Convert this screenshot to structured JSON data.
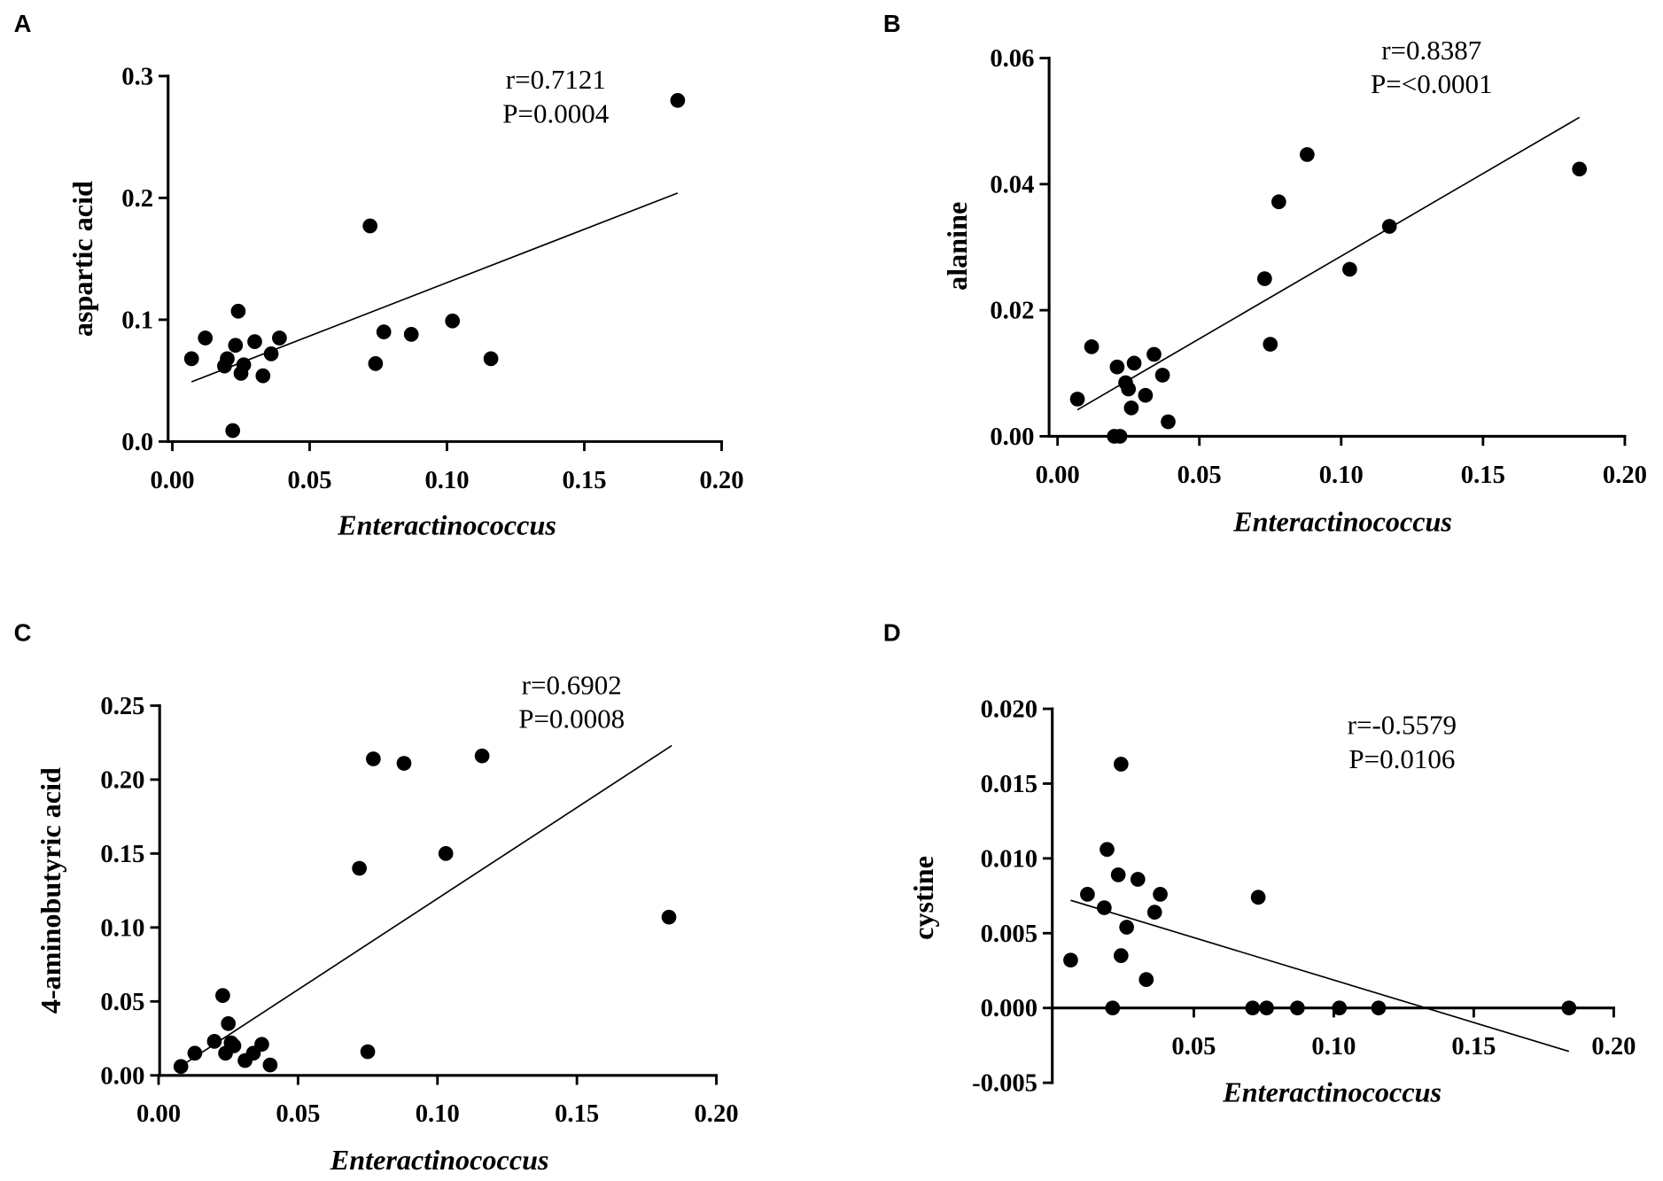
{
  "chart_data": [
    {
      "panel_label": "A",
      "type": "scatter",
      "xlabel": "Enteractinococcus",
      "ylabel": "aspartic acid",
      "xlim": [
        0,
        0.2
      ],
      "ylim": [
        0,
        0.3
      ],
      "xticks": [
        "0.00",
        "0.05",
        "0.10",
        "0.15",
        "0.20"
      ],
      "yticks": [
        "0.0",
        "0.1",
        "0.2",
        "0.3"
      ],
      "x": [
        0.007,
        0.012,
        0.019,
        0.02,
        0.022,
        0.023,
        0.024,
        0.025,
        0.026,
        0.03,
        0.033,
        0.036,
        0.039,
        0.072,
        0.074,
        0.077,
        0.087,
        0.102,
        0.116,
        0.184
      ],
      "y": [
        0.068,
        0.085,
        0.062,
        0.068,
        0.009,
        0.079,
        0.107,
        0.056,
        0.063,
        0.082,
        0.054,
        0.072,
        0.085,
        0.177,
        0.064,
        0.09,
        0.088,
        0.099,
        0.068,
        0.28
      ],
      "fit_line": {
        "x": [
          0.007,
          0.184
        ],
        "y": [
          0.049,
          0.204
        ]
      },
      "annotations": {
        "r": "r=0.7121",
        "p": "P=0.0004"
      }
    },
    {
      "panel_label": "B",
      "type": "scatter",
      "xlabel": "Enteractinococcus",
      "ylabel": "alanine",
      "xlim": [
        0,
        0.2
      ],
      "ylim": [
        0,
        0.06
      ],
      "xticks": [
        "0.00",
        "0.05",
        "0.10",
        "0.15",
        "0.20"
      ],
      "yticks": [
        "0.00",
        "0.02",
        "0.04",
        "0.06"
      ],
      "x": [
        0.007,
        0.012,
        0.02,
        0.021,
        0.022,
        0.024,
        0.025,
        0.026,
        0.027,
        0.031,
        0.034,
        0.037,
        0.039,
        0.073,
        0.075,
        0.078,
        0.088,
        0.103,
        0.117,
        0.184
      ],
      "y": [
        0.0059,
        0.0142,
        0.0,
        0.011,
        0.0,
        0.0085,
        0.0075,
        0.0045,
        0.0116,
        0.0065,
        0.013,
        0.0097,
        0.0023,
        0.025,
        0.0146,
        0.0372,
        0.0447,
        0.0265,
        0.0333,
        0.0424
      ],
      "fit_line": {
        "x": [
          0.007,
          0.184
        ],
        "y": [
          0.0042,
          0.0506
        ]
      },
      "annotations": {
        "r": "r=0.8387",
        "p": "P=<0.0001"
      }
    },
    {
      "panel_label": "C",
      "type": "scatter",
      "xlabel": "Enteractinococcus",
      "ylabel": "4-aminobutyric acid",
      "xlim": [
        0,
        0.2
      ],
      "ylim": [
        0,
        0.25
      ],
      "xticks": [
        "0.00",
        "0.05",
        "0.10",
        "0.15",
        "0.20"
      ],
      "yticks": [
        "0.00",
        "0.05",
        "0.10",
        "0.15",
        "0.20",
        "0.25"
      ],
      "x": [
        0.008,
        0.013,
        0.02,
        0.023,
        0.024,
        0.025,
        0.026,
        0.027,
        0.031,
        0.034,
        0.037,
        0.04,
        0.072,
        0.075,
        0.077,
        0.088,
        0.103,
        0.116,
        0.183
      ],
      "y": [
        0.006,
        0.015,
        0.023,
        0.054,
        0.015,
        0.035,
        0.022,
        0.02,
        0.01,
        0.015,
        0.021,
        0.007,
        0.14,
        0.016,
        0.214,
        0.211,
        0.15,
        0.216,
        0.107
      ],
      "fit_line": {
        "x": [
          0.007,
          0.184
        ],
        "y": [
          0.005,
          0.223
        ]
      },
      "annotations": {
        "r": "r=0.6902",
        "p": "P=0.0008"
      }
    },
    {
      "panel_label": "D",
      "type": "scatter",
      "xlabel": "Enteractinococcus",
      "ylabel": "cystine",
      "xlim": [
        0,
        0.2
      ],
      "ylim": [
        -0.005,
        0.02
      ],
      "x_axis_at": 0,
      "xticks": [
        "0.05",
        "0.10",
        "0.15",
        "0.20"
      ],
      "yticks": [
        "-0.005",
        "0.000",
        "0.005",
        "0.010",
        "0.015",
        "0.020"
      ],
      "x": [
        0.006,
        0.012,
        0.018,
        0.019,
        0.021,
        0.023,
        0.024,
        0.024,
        0.026,
        0.03,
        0.033,
        0.036,
        0.038,
        0.071,
        0.073,
        0.076,
        0.087,
        0.102,
        0.116,
        0.184
      ],
      "y": [
        0.0032,
        0.0076,
        0.0067,
        0.0106,
        0.0,
        0.0089,
        0.0163,
        0.0035,
        0.0054,
        0.0086,
        0.0019,
        0.0064,
        0.0076,
        0.0,
        0.0074,
        0.0,
        0.0,
        0.0,
        0.0,
        0.0
      ],
      "fit_line": {
        "x": [
          0.006,
          0.184
        ],
        "y": [
          0.0072,
          -0.0029
        ]
      },
      "annotations": {
        "r": "r=-0.5579",
        "p": "P=0.0106"
      }
    }
  ]
}
